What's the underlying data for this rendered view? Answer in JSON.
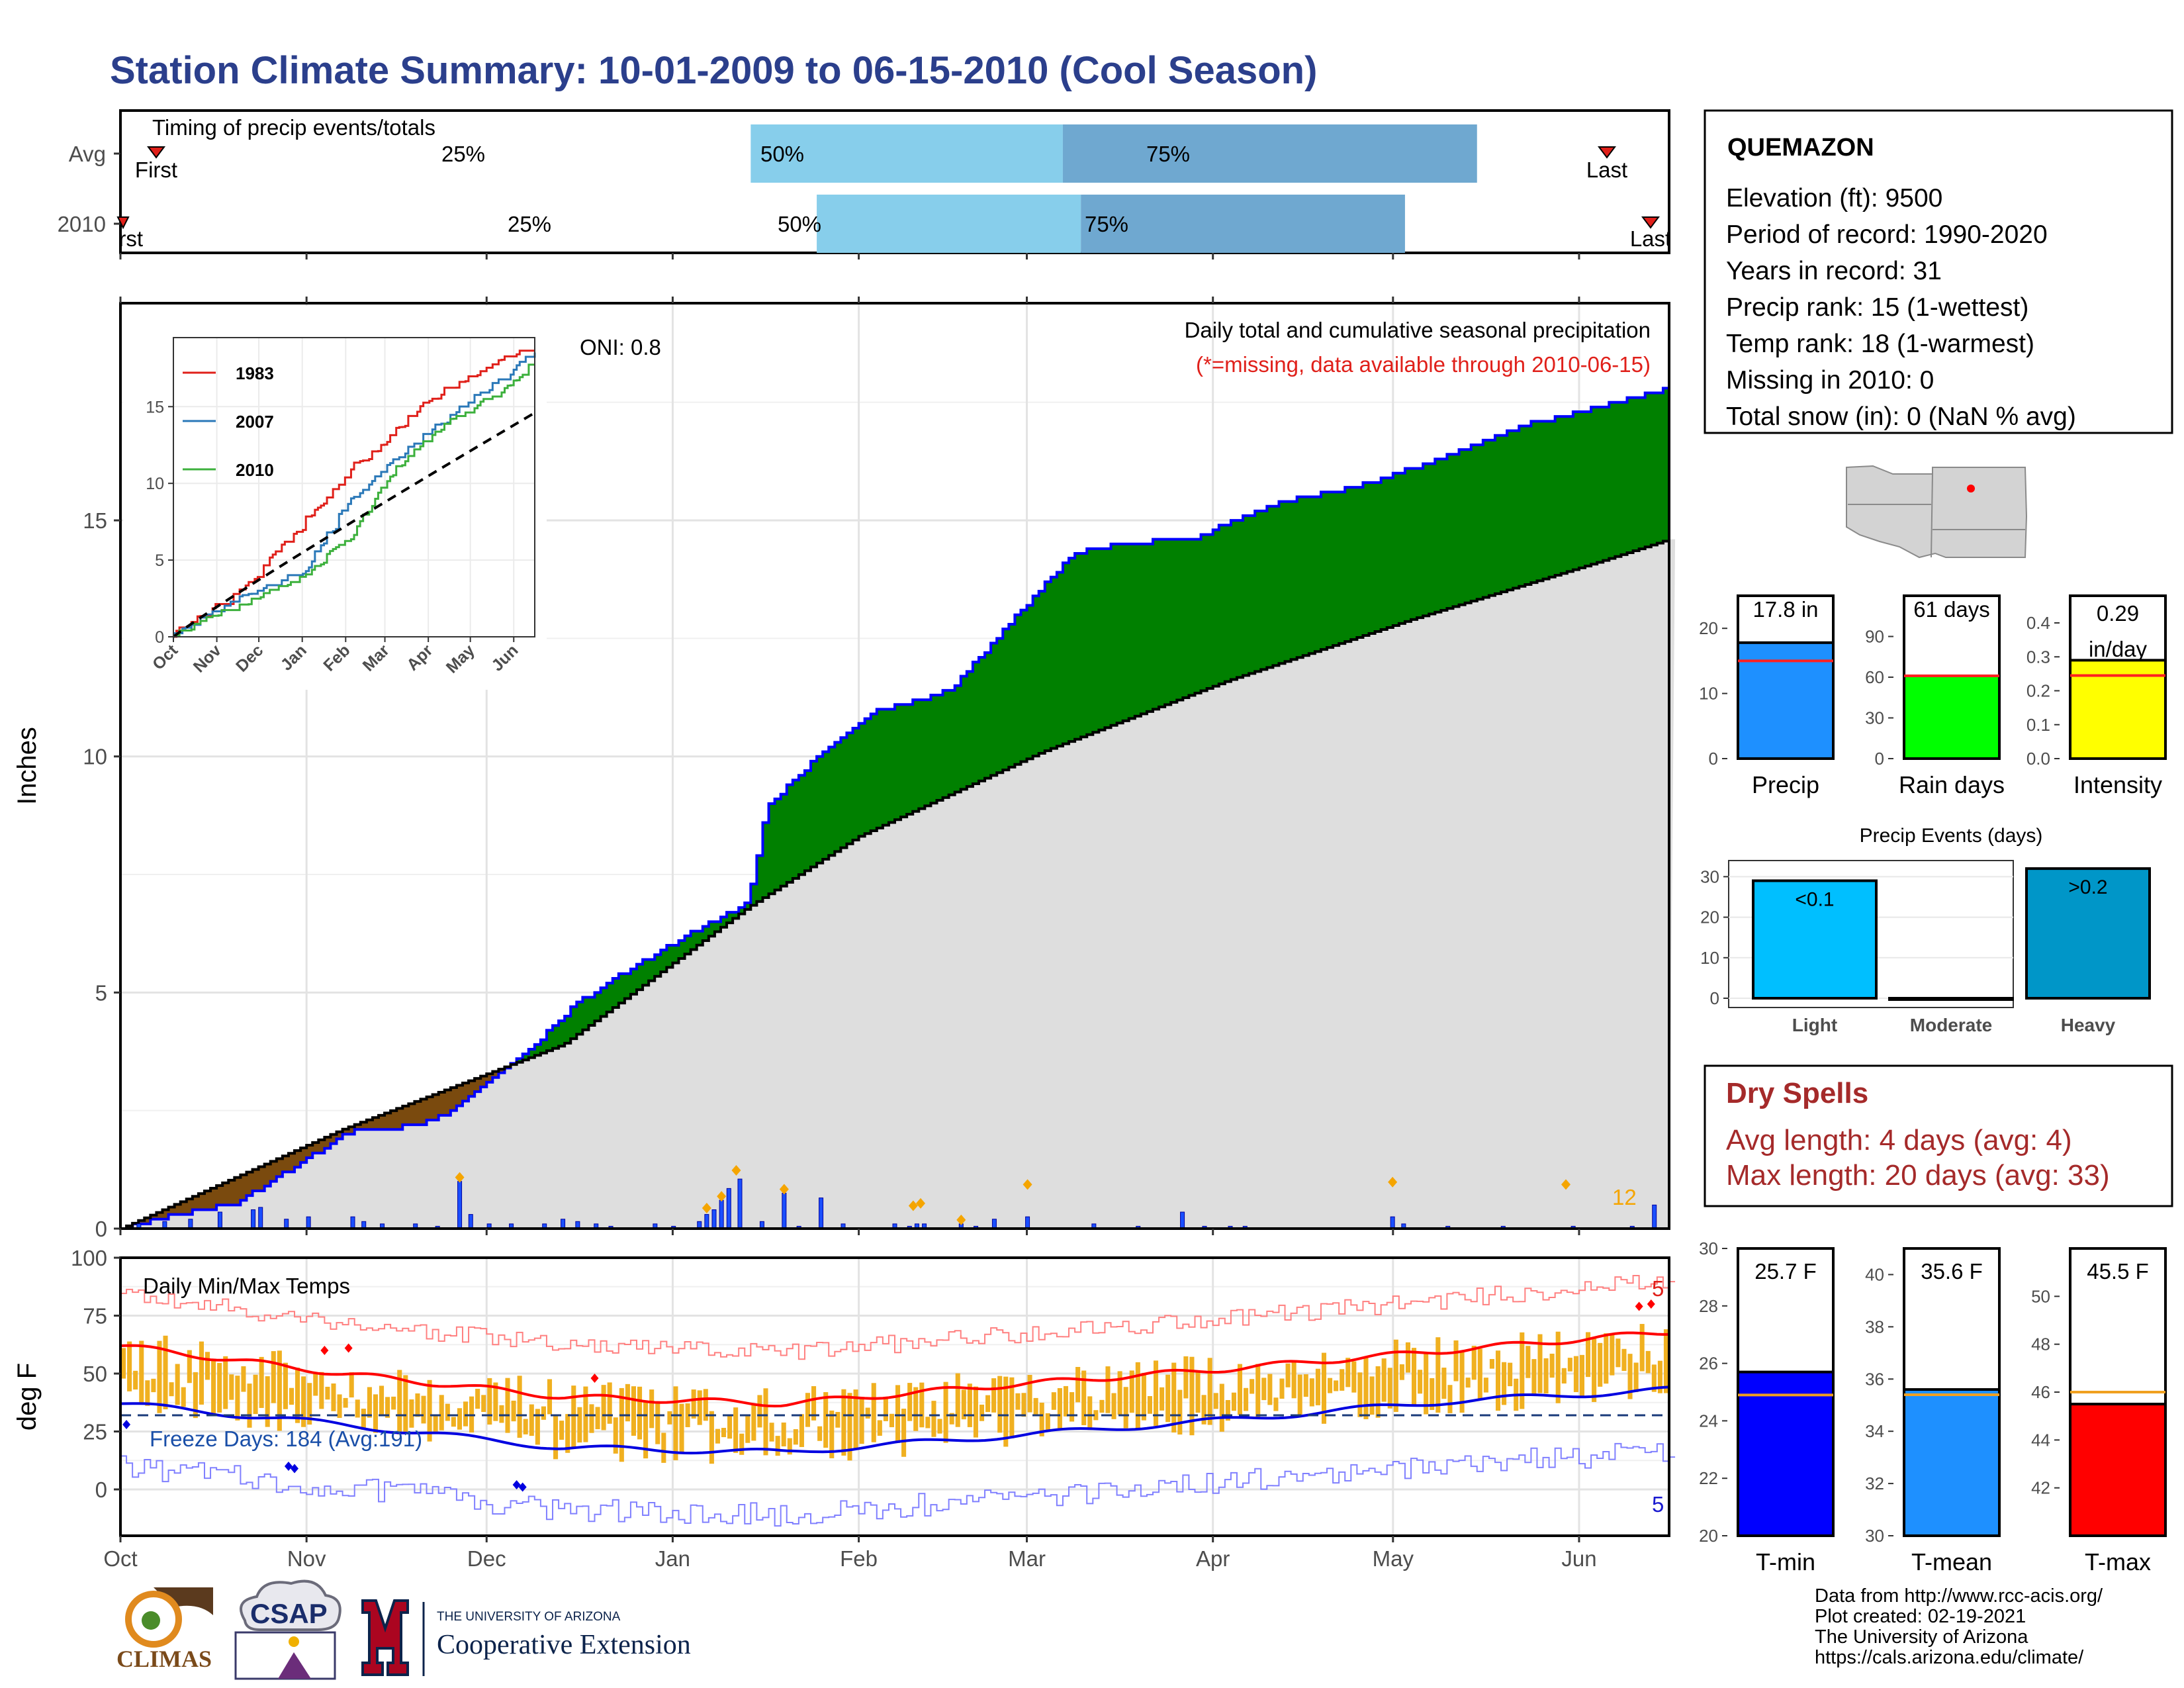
{
  "title": "Station Climate Summary: 10-01-2009 to 06-15-2010 (Cool Season)",
  "timing": {
    "title": "Timing of precip events/totals",
    "rows": [
      {
        "label": "Avg",
        "first_label": "First",
        "last_label": "Last",
        "p25": "25%",
        "p50": "50%",
        "p75": "75%",
        "first_day": 12,
        "last_day": 250,
        "q25_day": 105,
        "q50_day": 157,
        "q75_day": 226
      },
      {
        "label": "2010",
        "first_label": "First",
        "last_label": "Last",
        "p25": "25%",
        "p50": "50%",
        "p75": "75%",
        "first_day": 1,
        "last_day": 257,
        "q25_day": 116,
        "q50_day": 160,
        "q75_day": 214
      }
    ]
  },
  "main": {
    "ylabel": "Inches",
    "oni": "ONI: 0.8",
    "subtitle": "Daily total and cumulative seasonal precipitation",
    "missing_note": "(*=missing, data available through 2010-06-15)",
    "missing_count": "12",
    "yticks": [
      "0",
      "5",
      "10",
      "15"
    ],
    "xticks": [
      "Oct",
      "Nov",
      "Dec",
      "Jan",
      "Feb",
      "Mar",
      "Apr",
      "May",
      "Jun"
    ]
  },
  "inset": {
    "yticks": [
      "0",
      "5",
      "10",
      "15"
    ],
    "xticks": [
      "Oct",
      "Nov",
      "Dec",
      "Jan",
      "Feb",
      "Mar",
      "Apr",
      "May",
      "Jun"
    ],
    "legend": [
      "1983",
      "2007",
      "2010"
    ]
  },
  "temps": {
    "ylabel": "deg F",
    "title": "Daily Min/Max Temps",
    "freeze": "Freeze Days: 184 (Avg:191)",
    "count_hi": "5",
    "count_lo": "5",
    "yticks": [
      "0",
      "25",
      "50",
      "75",
      "100"
    ],
    "xticks": [
      "Oct",
      "Nov",
      "Dec",
      "Jan",
      "Feb",
      "Mar",
      "Apr",
      "May",
      "Jun"
    ]
  },
  "station": {
    "name": "QUEMAZON",
    "lines": [
      "Elevation (ft): 9500",
      "Period of record: 1990-2020",
      "Years in record: 31",
      "Precip rank: 15 (1-wettest)",
      "Temp rank: 18 (1-warmest)",
      "Missing in 2010: 0",
      "Total snow (in): 0 (NaN % avg)"
    ]
  },
  "bars_precip": [
    {
      "label": "Precip",
      "value_label": "17.8 in",
      "value": 17.8,
      "avg": 15,
      "ymax": 25,
      "ticks": [
        "0",
        "10",
        "20"
      ],
      "color": "#1e90ff"
    },
    {
      "label": "Rain days",
      "value_label": "61 days",
      "value": 61,
      "avg": 61,
      "ymax": 120,
      "ticks": [
        "0",
        "30",
        "60",
        "90"
      ],
      "color": "#00ff00"
    },
    {
      "label": "Intensity",
      "value_label": "0.29 in/day",
      "value": 0.29,
      "avg": 0.245,
      "ymax": 0.48,
      "ticks": [
        "0.0",
        "0.1",
        "0.2",
        "0.3",
        "0.4"
      ],
      "color": "#ffff00"
    }
  ],
  "events": {
    "title": "Precip Events (days)",
    "categories": [
      "Light",
      "Moderate",
      "Heavy"
    ],
    "bar_labels": [
      "<0.1",
      "",
      ">0.2"
    ],
    "values": [
      29,
      0,
      32
    ],
    "yticks": [
      "0",
      "10",
      "20",
      "30"
    ]
  },
  "dry": {
    "title": "Dry Spells",
    "lines": [
      "Avg length: 4 days (avg: 4)",
      "Max length: 20 days (avg: 33)"
    ]
  },
  "bars_temp": [
    {
      "label": "T-min",
      "value_label": "25.7 F",
      "value": 25.7,
      "avg": 24.9,
      "ymin": 20,
      "ymax": 30,
      "ticks": [
        "20",
        "22",
        "24",
        "26",
        "28",
        "30"
      ],
      "color": "#0000ff"
    },
    {
      "label": "T-mean",
      "value_label": "35.6 F",
      "value": 35.6,
      "avg": 35.4,
      "ymin": 30,
      "ymax": 41,
      "ticks": [
        "30",
        "32",
        "34",
        "36",
        "38",
        "40"
      ],
      "color": "#1e90ff"
    },
    {
      "label": "T-max",
      "value_label": "45.5 F",
      "value": 45.5,
      "avg": 46,
      "ymin": 40,
      "ymax": 52,
      "ticks": [
        "42",
        "44",
        "46",
        "48",
        "50"
      ],
      "color": "#ff0000"
    }
  ],
  "footer": {
    "lines": [
      "Data from http://www.rcc-acis.org/",
      "Plot created: 02-19-2021",
      "The University of Arizona",
      "https://cals.arizona.edu/climate/"
    ],
    "climas": "CLIMAS",
    "csap": "CSAP",
    "ua_small": "THE UNIVERSITY OF ARIZONA",
    "ua_big": "Cooperative Extension"
  },
  "chart_data": [
    {
      "type": "area",
      "title": "Daily total and cumulative seasonal precipitation",
      "ylabel": "Inches",
      "x": [
        "Oct",
        "Nov",
        "Dec",
        "Jan",
        "Feb",
        "Mar",
        "Apr",
        "May",
        "Jun"
      ],
      "ylim": [
        0,
        19.6
      ],
      "series": [
        {
          "name": "cumulative 2010 (observed)",
          "points": [
            [
              0,
              0
            ],
            [
              15,
              0.3
            ],
            [
              31,
              0.55
            ],
            [
              45,
              1.2
            ],
            [
              62,
              2.05
            ],
            [
              66,
              2.05
            ],
            [
              80,
              2.2
            ],
            [
              90,
              2.5
            ],
            [
              110,
              3.75
            ],
            [
              124,
              4.8
            ],
            [
              140,
              5.6
            ],
            [
              160,
              6.5
            ],
            [
              170,
              6.9
            ],
            [
              175,
              8.9
            ],
            [
              190,
              10.1
            ],
            [
              205,
              10.95
            ],
            [
              225,
              11.4
            ],
            [
              235,
              12.3
            ],
            [
              250,
              13.6
            ],
            [
              258,
              14.3
            ],
            [
              270,
              14.5
            ],
            [
              290,
              14.6
            ],
            [
              315,
              15.4
            ],
            [
              340,
              15.8
            ],
            [
              380,
              17.0
            ],
            [
              405,
              17.5
            ],
            [
              420,
              17.8
            ]
          ]
        },
        {
          "name": "cumulative average",
          "points": [
            [
              0,
              0
            ],
            [
              60,
              2.1
            ],
            [
              120,
              3.9
            ],
            [
              170,
              6.8
            ],
            [
              200,
              8.3
            ],
            [
              250,
              10.1
            ],
            [
              300,
              11.6
            ],
            [
              350,
              12.9
            ],
            [
              400,
              14.1
            ],
            [
              420,
              14.6
            ]
          ]
        }
      ]
    },
    {
      "type": "line",
      "title": "Daily Min/Max Temps",
      "ylabel": "deg F",
      "ylim": [
        -20,
        100
      ],
      "series": [
        {
          "name": "avg max",
          "points": [
            [
              0,
              62
            ],
            [
              60,
              50
            ],
            [
              120,
              40
            ],
            [
              180,
              37
            ],
            [
              240,
              45
            ],
            [
              300,
              52
            ],
            [
              360,
              60
            ],
            [
              420,
              68
            ]
          ]
        },
        {
          "name": "avg min",
          "points": [
            [
              0,
              37
            ],
            [
              60,
              28
            ],
            [
              120,
              18
            ],
            [
              180,
              16
            ],
            [
              240,
              23
            ],
            [
              300,
              30
            ],
            [
              360,
              38
            ],
            [
              420,
              43
            ]
          ]
        }
      ]
    },
    {
      "type": "line",
      "title": "inset cumulative precipitation",
      "series": [
        {
          "name": "1983",
          "values_end": 18.6
        },
        {
          "name": "2007",
          "values_end": 18.6
        },
        {
          "name": "2010",
          "values_end": 17.8
        }
      ]
    }
  ]
}
